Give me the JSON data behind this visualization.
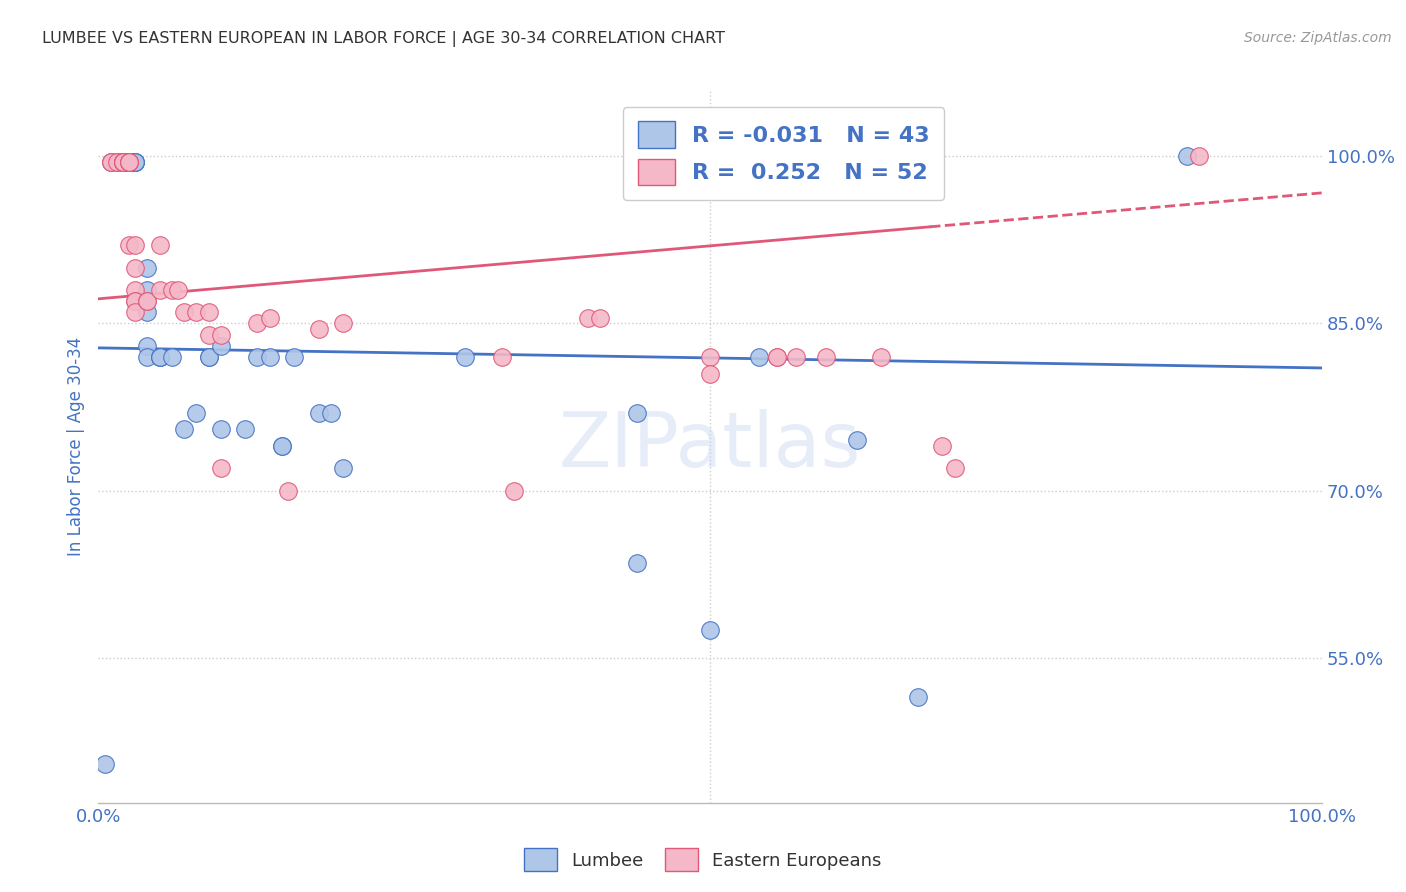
{
  "title": "LUMBEE VS EASTERN EUROPEAN IN LABOR FORCE | AGE 30-34 CORRELATION CHART",
  "source": "Source: ZipAtlas.com",
  "ylabel": "In Labor Force | Age 30-34",
  "watermark": "ZIPatlas",
  "xlim": [
    0.0,
    1.0
  ],
  "ylim": [
    0.42,
    1.06
  ],
  "yticks": [
    0.55,
    0.7,
    0.85,
    1.0
  ],
  "ytick_labels": [
    "55.0%",
    "70.0%",
    "85.0%",
    "100.0%"
  ],
  "xtick_positions": [
    0.0,
    0.1,
    0.2,
    0.3,
    0.4,
    0.5,
    0.6,
    0.7,
    0.8,
    0.9,
    1.0
  ],
  "xtick_labels": [
    "0.0%",
    "",
    "",
    "",
    "",
    "",
    "",
    "",
    "",
    "",
    "100.0%"
  ],
  "lumbee_fill_color": "#aec6e8",
  "lumbee_edge_color": "#4472c4",
  "eastern_fill_color": "#f4b8c8",
  "eastern_edge_color": "#e05878",
  "lumbee_line_color": "#4472c4",
  "eastern_line_color": "#e05878",
  "legend_R_lumbee": "-0.031",
  "legend_N_lumbee": "43",
  "legend_R_eastern": "0.252",
  "legend_N_eastern": "52",
  "lumbee_scatter_x": [
    0.005,
    0.01,
    0.015,
    0.02,
    0.025,
    0.025,
    0.025,
    0.03,
    0.03,
    0.03,
    0.03,
    0.04,
    0.04,
    0.04,
    0.04,
    0.04,
    0.05,
    0.05,
    0.05,
    0.06,
    0.07,
    0.08,
    0.09,
    0.09,
    0.1,
    0.1,
    0.12,
    0.13,
    0.14,
    0.15,
    0.15,
    0.16,
    0.18,
    0.19,
    0.2,
    0.3,
    0.44,
    0.44,
    0.5,
    0.54,
    0.62,
    0.67,
    0.89
  ],
  "lumbee_scatter_y": [
    0.455,
    0.995,
    0.995,
    0.995,
    0.995,
    0.995,
    0.995,
    0.995,
    0.995,
    0.995,
    0.995,
    0.9,
    0.88,
    0.86,
    0.83,
    0.82,
    0.82,
    0.82,
    0.82,
    0.82,
    0.755,
    0.77,
    0.82,
    0.82,
    0.755,
    0.83,
    0.755,
    0.82,
    0.82,
    0.74,
    0.74,
    0.82,
    0.77,
    0.77,
    0.72,
    0.82,
    0.635,
    0.77,
    0.575,
    0.82,
    0.745,
    0.515,
    1.0
  ],
  "eastern_scatter_x": [
    0.01,
    0.01,
    0.015,
    0.02,
    0.02,
    0.02,
    0.02,
    0.02,
    0.02,
    0.02,
    0.025,
    0.025,
    0.025,
    0.025,
    0.025,
    0.03,
    0.03,
    0.03,
    0.03,
    0.03,
    0.03,
    0.04,
    0.04,
    0.05,
    0.05,
    0.06,
    0.065,
    0.07,
    0.08,
    0.09,
    0.09,
    0.1,
    0.1,
    0.13,
    0.14,
    0.155,
    0.18,
    0.2,
    0.33,
    0.34,
    0.4,
    0.41,
    0.5,
    0.5,
    0.555,
    0.555,
    0.57,
    0.595,
    0.64,
    0.69,
    0.7,
    0.9
  ],
  "eastern_scatter_y": [
    0.995,
    0.995,
    0.995,
    0.995,
    0.995,
    0.995,
    0.995,
    0.995,
    0.995,
    0.995,
    0.995,
    0.995,
    0.995,
    0.995,
    0.92,
    0.92,
    0.9,
    0.88,
    0.87,
    0.87,
    0.86,
    0.87,
    0.87,
    0.88,
    0.92,
    0.88,
    0.88,
    0.86,
    0.86,
    0.86,
    0.84,
    0.84,
    0.72,
    0.85,
    0.855,
    0.7,
    0.845,
    0.85,
    0.82,
    0.7,
    0.855,
    0.855,
    0.82,
    0.805,
    0.82,
    0.82,
    0.82,
    0.82,
    0.82,
    0.74,
    0.72,
    1.0
  ],
  "background_color": "#ffffff",
  "grid_color": "#cccccc",
  "title_color": "#333333",
  "tick_color": "#4472c4"
}
